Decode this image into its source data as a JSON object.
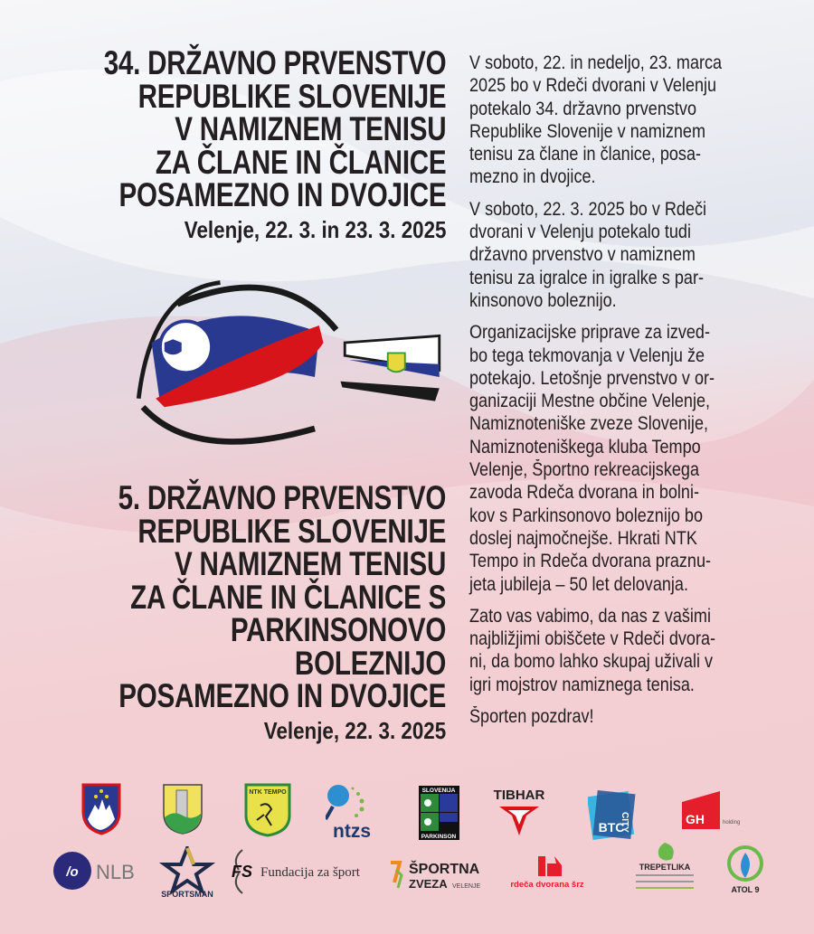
{
  "heading_1": {
    "lines": [
      "34. DRŽAVNO PRVENSTVO",
      "REPUBLIKE SLOVENIJE",
      "V NAMIZNEM TENISU",
      "ZA ČLANE IN ČLANICE",
      "POSAMEZNO IN DVOJICE"
    ],
    "date": "Velenje, 22. 3. in 23. 3. 2025"
  },
  "heading_2": {
    "lines": [
      "5. DRŽAVNO PRVENSTVO",
      "REPUBLIKE SLOVENIJE",
      "V NAMIZNEM TENISU",
      "ZA ČLANE IN ČLANICE S",
      "PARKINSONOVO",
      "BOLEZNIJO",
      "POSAMEZNO IN DVOJICE"
    ],
    "date": "Velenje, 22. 3. 2025"
  },
  "body": {
    "paragraphs": [
      [
        "V soboto, 22. in nedeljo, 23. marca",
        "2025 bo v Rdeči dvorani v Velenju",
        "potekalo 34. državno prvenstvo",
        "Republike Slovenije v namiznem",
        "tenisu za člane in članice, posa-",
        "mezno in dvojice."
      ],
      [
        "V soboto, 22. 3. 2025 bo v Rdeči",
        "dvorani v Velenju potekalo tudi",
        "državno prvenstvo v namiznem",
        "tenisu za igralce in igralke s par-",
        "kinsonovo boleznijo."
      ],
      [
        "Organizacijske priprave za izved-",
        "bo tega tekmovanja v Velenju že",
        "potekajo. Letošnje prvenstvo v or-",
        "ganizaciji Mestne občine Velenje,",
        "Namiznoteniške zveze Slovenije,",
        "Namiznoteniškega kluba Tempo",
        "Velenje, Športno rekreacijskega",
        "zavoda Rdeča dvorana in bolni-",
        "kov s Parkinsonovo boleznijo bo",
        "doslej najmočnejše. Hkrati NTK",
        "Tempo in Rdeča dvorana praznu-",
        "jeta jubileja – 50 let delovanja."
      ],
      [
        "Zato vas vabimo, da nas z vašimi",
        "najbližjimi obiščete v Rdeči dvora-",
        "ni, da bomo lahko skupaj uživali v",
        "igri mojstrov namiznega tenisa."
      ],
      [
        "Športen pozdrav!"
      ]
    ]
  },
  "logos": {
    "ntk_tempo": "NTK TEMPO",
    "ntzs": "ntzs",
    "ping_pong_top": "SLOVENIJA",
    "ping_pong_bottom": "PARKINSON",
    "tibhar": "TIBHAR",
    "btc": "BTC",
    "btc_city": "CITY",
    "gh": "GH",
    "gh_sub": "holding",
    "nlb": "NLB",
    "sportsman": "SPORTSMAN",
    "fs": "FS",
    "fundacija": "Fundacija za šport",
    "sz_top": "ŠPORTNA",
    "sz_bottom": "ZVEZA",
    "sz_city": "VELENJE",
    "rdeca": "rdeča dvorana šrz",
    "trepetlika": "TREPETLIKA",
    "atol": "ATOL 9"
  },
  "colors": {
    "blue": "#2a3990",
    "red": "#d7141a",
    "nlb": "#2b2a7a",
    "text": "#231f20"
  }
}
